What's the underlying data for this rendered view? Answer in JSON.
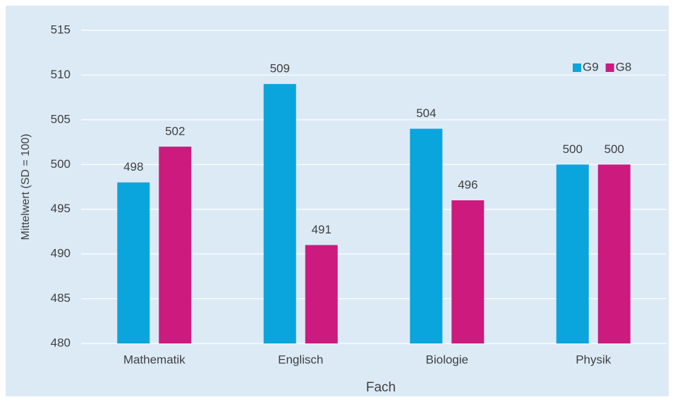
{
  "chart_data": {
    "type": "bar",
    "x_label": "Fach",
    "y_label": "Mittelwert (SD = 100)",
    "categories": [
      "Mathematik",
      "Englisch",
      "Biologie",
      "Physik"
    ],
    "series": [
      {
        "name": "G9",
        "color": "#0aa5dc",
        "values": [
          498,
          509,
          504,
          500
        ]
      },
      {
        "name": "G8",
        "color": "#cc1a7f",
        "values": [
          502,
          491,
          496,
          500
        ]
      }
    ],
    "ylim": [
      480,
      515
    ],
    "yticks": [
      480,
      485,
      490,
      495,
      500,
      505,
      510,
      515
    ],
    "grid": true,
    "legend": "top-right"
  }
}
